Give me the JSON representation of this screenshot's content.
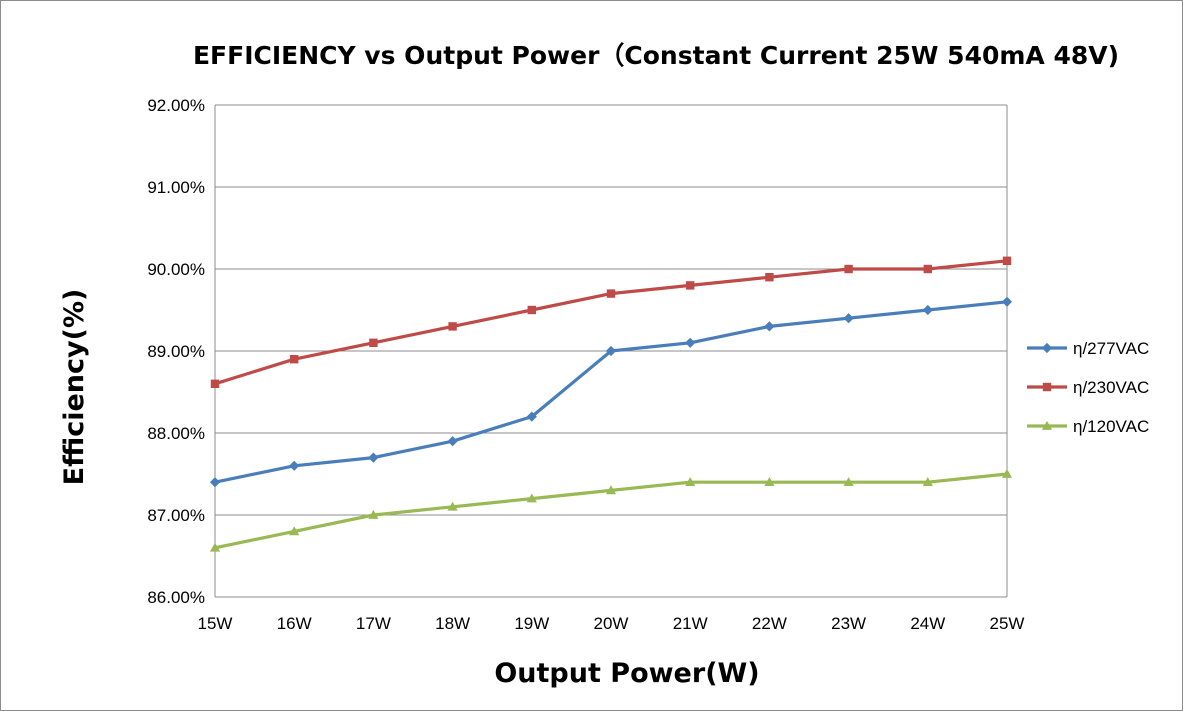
{
  "chart_data": {
    "type": "line",
    "title": "EFFICIENCY vs Output Power（Constant Current 25W 540mA 48V)",
    "xlabel": "Output Power(W)",
    "ylabel": "Efficiency(%)",
    "categories": [
      "15W",
      "16W",
      "17W",
      "18W",
      "19W",
      "20W",
      "21W",
      "22W",
      "23W",
      "24W",
      "25W"
    ],
    "ylim": [
      86.0,
      92.0
    ],
    "yticks": [
      "86.00%",
      "87.00%",
      "88.00%",
      "89.00%",
      "90.00%",
      "91.00%",
      "92.00%"
    ],
    "grid": true,
    "legend_position": "right",
    "series": [
      {
        "name": "η/277VAC",
        "color": "#4a7ebb",
        "marker": "diamond",
        "values": [
          87.4,
          87.6,
          87.7,
          87.9,
          88.2,
          89.0,
          89.1,
          89.3,
          89.4,
          89.5,
          89.6
        ]
      },
      {
        "name": "η/230VAC",
        "color": "#be4b48",
        "marker": "square",
        "values": [
          88.6,
          88.9,
          89.1,
          89.3,
          89.5,
          89.7,
          89.8,
          89.9,
          90.0,
          90.0,
          90.1
        ]
      },
      {
        "name": "η/120VAC",
        "color": "#98b954",
        "marker": "triangle",
        "values": [
          86.6,
          86.8,
          87.0,
          87.1,
          87.2,
          87.3,
          87.4,
          87.4,
          87.4,
          87.4,
          87.5
        ]
      }
    ]
  }
}
